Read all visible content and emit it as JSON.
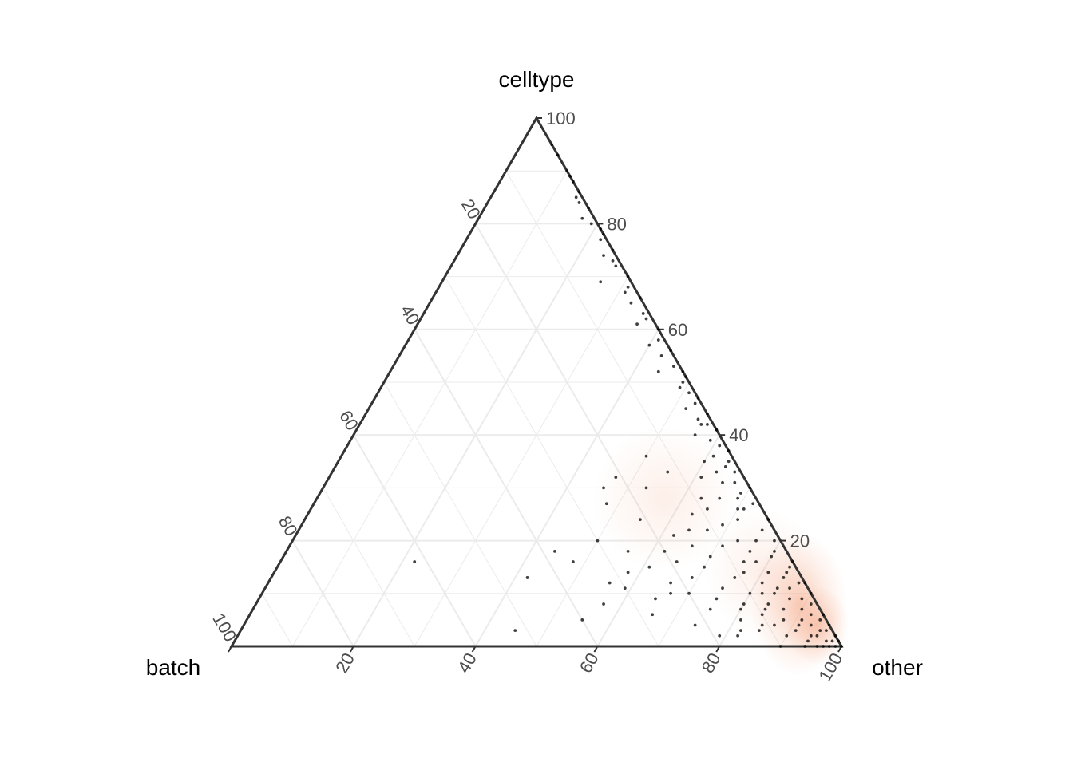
{
  "chart_data": {
    "type": "scatter",
    "subtype": "ternary",
    "axes": {
      "top": "celltype",
      "left": "batch",
      "right": "other"
    },
    "scale": [
      0,
      100
    ],
    "ticks": [
      20,
      40,
      60,
      80,
      100
    ],
    "grid": true,
    "tick_labels": {
      "celltype": [
        "20",
        "40",
        "60",
        "80",
        "100"
      ],
      "batch": [
        "20",
        "40",
        "60",
        "80",
        "100"
      ],
      "other": [
        "20",
        "40",
        "60",
        "80",
        "100"
      ]
    },
    "points_note": "composition points given as [batch, celltype]; other = 100 - batch - celltype",
    "density_overlay": true,
    "colors": {
      "points": "#000000",
      "density": "#f4a582",
      "frame": "#333333",
      "grid": "#ebebeb"
    },
    "points": [
      [
        0,
        95
      ],
      [
        0,
        93
      ],
      [
        0,
        90
      ],
      [
        0,
        88
      ],
      [
        0,
        86
      ],
      [
        1,
        85
      ],
      [
        0,
        83
      ],
      [
        2,
        81
      ],
      [
        1,
        80
      ],
      [
        0,
        78
      ],
      [
        1,
        77
      ],
      [
        0,
        75
      ],
      [
        2,
        74
      ],
      [
        1,
        72
      ],
      [
        0,
        70
      ],
      [
        5,
        69
      ],
      [
        1,
        68
      ],
      [
        0,
        66
      ],
      [
        2,
        65
      ],
      [
        1,
        63
      ],
      [
        3,
        61
      ],
      [
        0,
        60
      ],
      [
        1,
        58
      ],
      [
        0,
        56
      ],
      [
        2,
        55
      ],
      [
        1,
        53
      ],
      [
        4,
        52
      ],
      [
        0,
        51
      ],
      [
        1,
        50
      ],
      [
        2,
        49
      ],
      [
        0,
        47
      ],
      [
        1,
        46
      ],
      [
        3,
        45
      ],
      [
        0,
        44
      ],
      [
        2,
        43
      ],
      [
        1,
        42
      ],
      [
        0,
        41
      ],
      [
        4,
        40
      ],
      [
        2,
        39
      ],
      [
        1,
        38
      ],
      [
        0,
        37
      ],
      [
        3,
        36
      ],
      [
        5,
        35
      ],
      [
        2,
        34
      ],
      [
        1,
        33
      ],
      [
        7,
        32
      ],
      [
        4,
        31
      ],
      [
        0,
        30
      ],
      [
        2,
        29
      ],
      [
        6,
        28
      ],
      [
        1,
        27
      ],
      [
        3,
        26
      ],
      [
        9,
        26
      ],
      [
        12,
        25
      ],
      [
        0,
        24
      ],
      [
        5,
        24
      ],
      [
        8,
        23
      ],
      [
        14,
        22
      ],
      [
        2,
        22
      ],
      [
        17,
        21
      ],
      [
        1,
        20
      ],
      [
        4,
        20
      ],
      [
        10,
        19
      ],
      [
        6,
        18
      ],
      [
        20,
        18
      ],
      [
        3,
        17
      ],
      [
        13,
        17
      ],
      [
        0,
        16
      ],
      [
        8,
        16
      ],
      [
        15,
        15
      ],
      [
        24,
        15
      ],
      [
        2,
        14
      ],
      [
        5,
        14
      ],
      [
        11,
        13
      ],
      [
        18,
        13
      ],
      [
        1,
        12
      ],
      [
        7,
        12
      ],
      [
        22,
        12
      ],
      [
        3,
        11
      ],
      [
        14,
        11
      ],
      [
        30,
        11
      ],
      [
        0,
        10
      ],
      [
        6,
        10
      ],
      [
        10,
        10
      ],
      [
        20,
        10
      ],
      [
        2,
        9
      ],
      [
        4,
        9
      ],
      [
        16,
        9
      ],
      [
        26,
        9
      ],
      [
        1,
        8
      ],
      [
        8,
        8
      ],
      [
        12,
        8
      ],
      [
        35,
        8
      ],
      [
        3,
        7
      ],
      [
        6,
        7
      ],
      [
        18,
        7
      ],
      [
        0,
        6
      ],
      [
        2,
        6
      ],
      [
        10,
        6
      ],
      [
        28,
        6
      ],
      [
        1,
        5
      ],
      [
        4,
        5
      ],
      [
        7,
        5
      ],
      [
        14,
        5
      ],
      [
        40,
        5
      ],
      [
        0,
        4
      ],
      [
        3,
        4
      ],
      [
        5,
        4
      ],
      [
        9,
        4
      ],
      [
        22,
        4
      ],
      [
        1,
        3
      ],
      [
        2,
        3
      ],
      [
        6,
        3
      ],
      [
        12,
        3
      ],
      [
        0,
        2
      ],
      [
        3,
        2
      ],
      [
        4,
        2
      ],
      [
        8,
        2
      ],
      [
        16,
        2
      ],
      [
        1,
        1
      ],
      [
        2,
        1
      ],
      [
        5,
        1
      ],
      [
        0,
        1
      ],
      [
        1,
        0
      ],
      [
        3,
        0
      ],
      [
        6,
        0
      ],
      [
        10,
        0
      ],
      [
        0,
        0
      ],
      [
        2,
        0
      ],
      [
        4,
        0
      ],
      [
        45,
        13
      ],
      [
        38,
        18
      ],
      [
        52,
        3
      ],
      [
        62,
        16
      ],
      [
        36,
        16
      ],
      [
        28,
        14
      ],
      [
        32,
        12
      ],
      [
        30,
        20
      ],
      [
        26,
        18
      ],
      [
        21,
        24
      ],
      [
        19,
        16
      ],
      [
        23,
        10
      ],
      [
        15,
        19
      ],
      [
        9,
        14
      ],
      [
        13,
        7
      ],
      [
        7,
        20
      ],
      [
        11,
        22
      ],
      [
        4,
        26
      ],
      [
        3,
        13
      ],
      [
        2,
        18
      ],
      [
        1,
        15
      ],
      [
        0,
        12
      ],
      [
        5,
        11
      ],
      [
        6,
        16
      ],
      [
        8,
        10
      ],
      [
        9,
        7
      ],
      [
        11,
        4
      ],
      [
        15,
        3
      ],
      [
        19,
        2
      ],
      [
        3,
        28
      ],
      [
        2,
        31
      ],
      [
        1,
        35
      ],
      [
        4,
        33
      ],
      [
        2,
        42
      ],
      [
        1,
        48
      ],
      [
        0,
        52
      ],
      [
        3,
        57
      ],
      [
        1,
        62
      ],
      [
        2,
        67
      ],
      [
        1,
        73
      ],
      [
        0,
        79
      ],
      [
        1,
        84
      ],
      [
        0,
        89
      ],
      [
        17,
        30
      ],
      [
        12,
        33
      ],
      [
        9,
        28
      ],
      [
        25,
        27
      ],
      [
        24,
        30
      ],
      [
        21,
        32
      ],
      [
        14,
        36
      ]
    ]
  }
}
